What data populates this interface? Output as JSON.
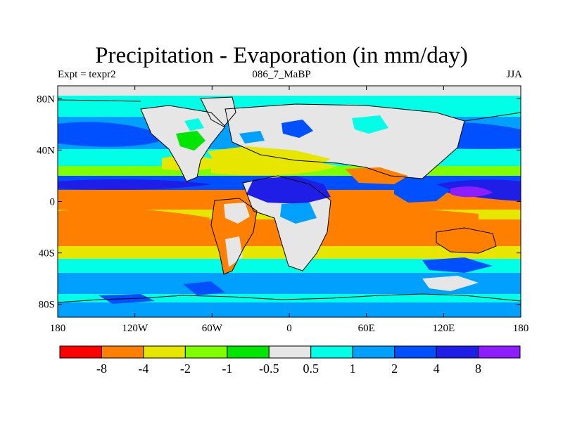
{
  "title": "Precipitation - Evaporation (in mm/day)",
  "left_label": "Expt = texpr2",
  "center_label": "086_7_MaBP",
  "right_label": "JJA",
  "map": {
    "projection": "cylindrical-equidistant",
    "lon_range": [
      -180,
      180
    ],
    "lat_range": [
      -90,
      90
    ],
    "x_ticks": [
      {
        "value": -180,
        "label": "180"
      },
      {
        "value": -120,
        "label": "120W"
      },
      {
        "value": -60,
        "label": "60W"
      },
      {
        "value": 0,
        "label": "0"
      },
      {
        "value": 60,
        "label": "60E"
      },
      {
        "value": 120,
        "label": "120E"
      },
      {
        "value": 180,
        "label": "180"
      }
    ],
    "y_ticks": [
      {
        "value": 80,
        "label": "80N"
      },
      {
        "value": 40,
        "label": "40N"
      },
      {
        "value": 0,
        "label": "0"
      },
      {
        "value": -40,
        "label": "40S"
      },
      {
        "value": -80,
        "label": "80S"
      }
    ]
  },
  "colorbar": {
    "colors": [
      "#ff0000",
      "#ff8000",
      "#e6e600",
      "#80ff00",
      "#00e600",
      "#e6e6e6",
      "#00ffe6",
      "#00a0ff",
      "#0050ff",
      "#1e1ee6",
      "#8c1eff"
    ],
    "labels": [
      "-8",
      "-4",
      "-2",
      "-1",
      "-0.5",
      "0.5",
      "1",
      "2",
      "4",
      "8"
    ]
  }
}
